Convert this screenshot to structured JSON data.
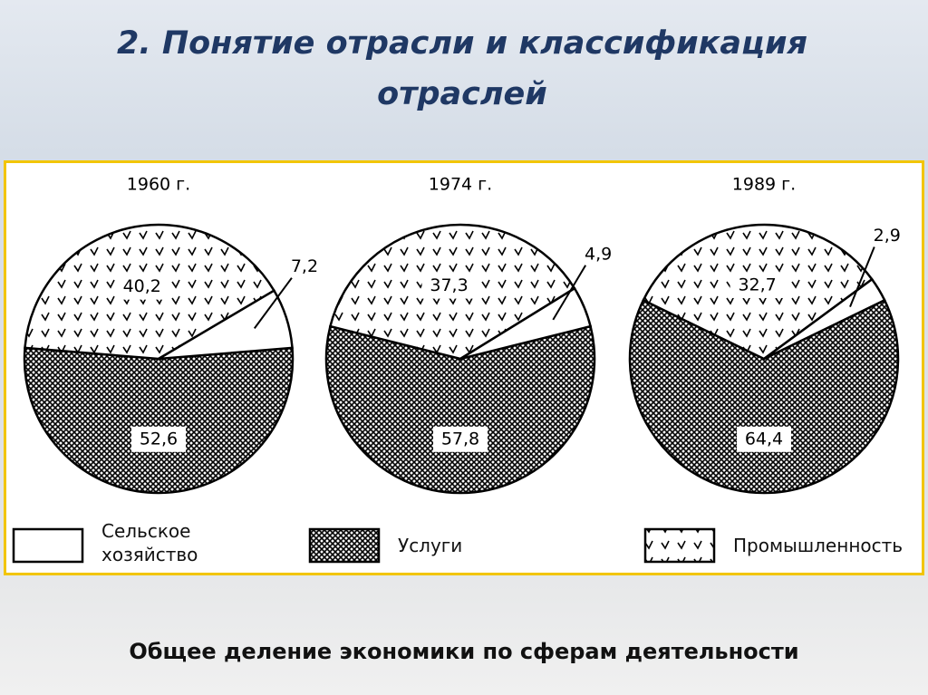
{
  "slide_title": "2. Понятие отрасли и классификация отраслей",
  "caption": "Общее деление экономики по сферам деятельности",
  "chart_data": [
    {
      "type": "pie",
      "title": "1960 г.",
      "categories": [
        "Сельское хозяйство",
        "Услуги",
        "Промышленность"
      ],
      "values": [
        7.2,
        52.6,
        40.2
      ],
      "value_labels": [
        "7,2",
        "52,6",
        "40,2"
      ]
    },
    {
      "type": "pie",
      "title": "1974 г.",
      "categories": [
        "Сельское хозяйство",
        "Услуги",
        "Промышленность"
      ],
      "values": [
        4.9,
        57.8,
        37.3
      ],
      "value_labels": [
        "4,9",
        "57,8",
        "37,3"
      ]
    },
    {
      "type": "pie",
      "title": "1989 г.",
      "categories": [
        "Сельское хозяйство",
        "Услуги",
        "Промышленность"
      ],
      "values": [
        2.9,
        64.4,
        32.7
      ],
      "value_labels": [
        "2,9",
        "64,4",
        "32,7"
      ]
    }
  ]
}
